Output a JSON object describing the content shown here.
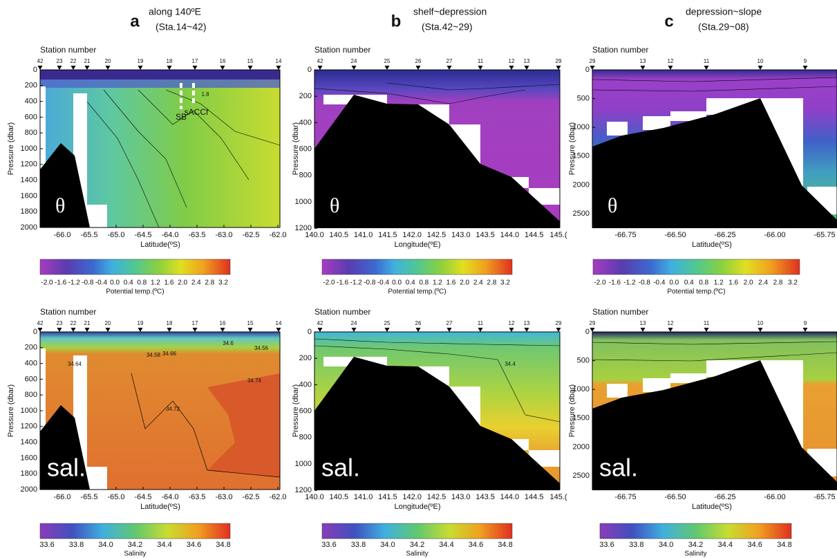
{
  "panels": [
    {
      "letter": "a",
      "title": "along 140ºE",
      "subtitle": "(Sta.14~42)",
      "x_label": "Latitude(ºS)",
      "stations": [
        "42",
        "23",
        "22",
        "21",
        "20",
        "19",
        "18",
        "17",
        "16",
        "15",
        "14"
      ],
      "x_ticks": [
        "-66.0",
        "-65.5",
        "-65.0",
        "-64.5",
        "-64.0",
        "-63.5",
        "-63.0",
        "-62.5",
        "-62.0"
      ],
      "y_ticks": [
        "0",
        "200",
        "400",
        "600",
        "800",
        "1000",
        "1200",
        "1400",
        "1600",
        "1800",
        "2000"
      ]
    },
    {
      "letter": "b",
      "title": "shelf~depression",
      "subtitle": "(Sta.42~29)",
      "x_label": "Longitude(ºE)",
      "stations": [
        "42",
        "24",
        "25",
        "26",
        "27",
        "11",
        "12",
        "13",
        "29"
      ],
      "x_ticks": [
        "140.0",
        "140.5",
        "141.0",
        "141.5",
        "142.0",
        "142.5",
        "143.0",
        "143.5",
        "144.0",
        "144.5",
        "145.("
      ],
      "y_ticks": [
        "0",
        "200",
        "400",
        "600",
        "800",
        "1000",
        "1200"
      ]
    },
    {
      "letter": "c",
      "title": "depression~slope",
      "subtitle": "(Sta.29~08)",
      "x_label": "Latitude(ºS)",
      "stations": [
        "29",
        "13",
        "12",
        "11",
        "10",
        "9"
      ],
      "x_ticks": [
        "-66.75",
        "-66.50",
        "-66.25",
        "-66.00",
        "-65.75"
      ],
      "y_ticks": [
        "0",
        "500",
        "1000",
        "1500",
        "2000",
        "2500"
      ]
    }
  ],
  "station_label": "Station number",
  "y_label": "Pressure (dbar)",
  "rows": [
    {
      "symbol": "θ",
      "colorbar": {
        "ticks": [
          "-2.0",
          "-1.6",
          "-1.2",
          "-0.8",
          "-0.4",
          "0.0",
          "0.4",
          "0.8",
          "1.2",
          "1.6",
          "2.0",
          "2.4",
          "2.8",
          "3.2"
        ],
        "label": "Potential temp.(ºC)"
      }
    },
    {
      "symbol": "sal.",
      "colorbar": {
        "ticks": [
          "33.6",
          "33.8",
          "34.0",
          "34.2",
          "34.4",
          "34.6",
          "34.8"
        ],
        "label": "Salinity"
      }
    }
  ],
  "annotations": [
    "SB",
    "sACCf"
  ],
  "contour_labels": {
    "a_theta": [
      "1.8"
    ],
    "a_sal": [
      "34.6",
      "34.56",
      "34.64",
      "34.58",
      "34.66",
      "34.72",
      "34.74"
    ],
    "b_sal": [
      "34.4"
    ]
  }
}
